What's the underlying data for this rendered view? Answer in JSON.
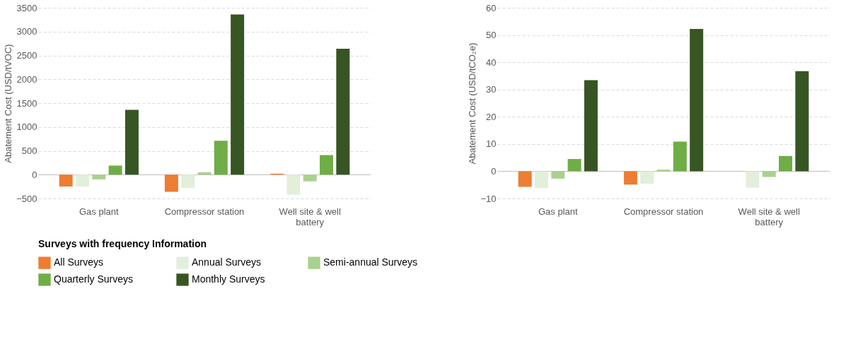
{
  "chart_data": [
    {
      "type": "bar",
      "ylabel": "Abatement Cost (USD/tVOC)",
      "legend_title": "Surveys with frequency Information",
      "legend": "bottom",
      "grid": "y",
      "categories": [
        "Gas plant",
        "Compressor station",
        "Well site & well battery"
      ],
      "ylim": [
        -500,
        3500
      ],
      "yticks": [
        -500,
        0,
        500,
        1000,
        1500,
        2000,
        2500,
        3000,
        3500
      ],
      "series": [
        {
          "name": "All Surveys",
          "color": "#ed7d31",
          "values": [
            -250,
            -360,
            20
          ]
        },
        {
          "name": "Annual Surveys",
          "color": "#e2efda",
          "values": [
            -250,
            -280,
            -420
          ]
        },
        {
          "name": "Semi-annual Surveys",
          "color": "#a9d18e",
          "values": [
            -100,
            50,
            -140
          ]
        },
        {
          "name": "Quarterly Surveys",
          "color": "#70ad47",
          "values": [
            190,
            710,
            410
          ]
        },
        {
          "name": "Monthly Surveys",
          "color": "#375623",
          "values": [
            1360,
            3360,
            2640
          ]
        }
      ]
    },
    {
      "type": "bar",
      "ylabel": "Abatement Cost (USD/tCO₂e)",
      "grid": "y",
      "categories": [
        "Gas plant",
        "Compressor station",
        "Well site & well battery"
      ],
      "ylim": [
        -10,
        60
      ],
      "yticks": [
        -10,
        0,
        10,
        20,
        30,
        40,
        50,
        60
      ],
      "series": [
        {
          "color": "#ed7d31",
          "values": [
            -5.7,
            -4.9,
            null
          ]
        },
        {
          "color": "#e2efda",
          "values": [
            -6.2,
            -4.6,
            -6.0
          ]
        },
        {
          "color": "#a9d18e",
          "values": [
            -2.7,
            0.6,
            -2.1
          ]
        },
        {
          "color": "#70ad47",
          "values": [
            4.5,
            10.9,
            5.6
          ]
        },
        {
          "color": "#375623",
          "values": [
            33.4,
            52.2,
            36.7
          ]
        }
      ]
    }
  ]
}
